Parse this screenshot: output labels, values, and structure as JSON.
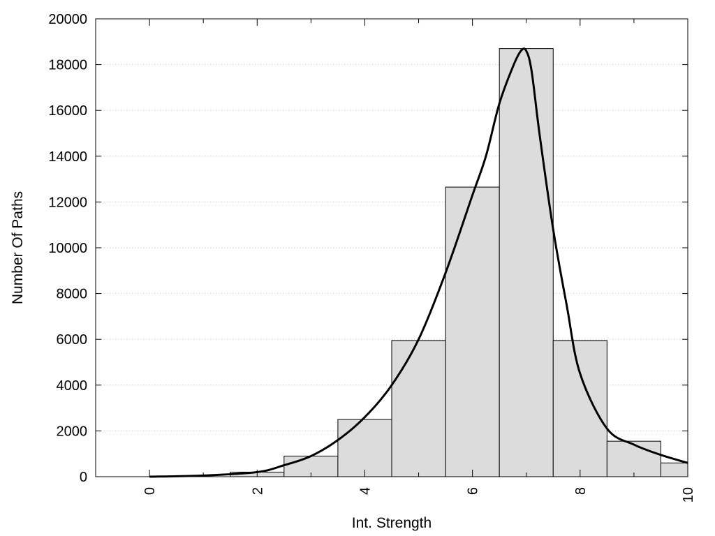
{
  "chart_data": {
    "type": "bar",
    "title": "",
    "xlabel": "Int. Strength",
    "ylabel": "Number Of Paths",
    "xlim": [
      -1,
      10
    ],
    "ylim": [
      0,
      20000
    ],
    "grid": "horizontal dotted",
    "x_ticks": [
      0,
      2,
      4,
      6,
      8,
      10
    ],
    "y_ticks": [
      0,
      2000,
      4000,
      6000,
      8000,
      10000,
      12000,
      14000,
      16000,
      18000,
      20000
    ],
    "bar_color": "#dcdcdc",
    "bars": [
      {
        "x": 0,
        "value": 0
      },
      {
        "x": 1,
        "value": 0
      },
      {
        "x": 2,
        "value": 200
      },
      {
        "x": 3,
        "value": 900
      },
      {
        "x": 4,
        "value": 2500
      },
      {
        "x": 5,
        "value": 5950
      },
      {
        "x": 6,
        "value": 12650
      },
      {
        "x": 7,
        "value": 18700
      },
      {
        "x": 8,
        "value": 5950
      },
      {
        "x": 9,
        "value": 1550
      },
      {
        "x": 10,
        "value": 600
      }
    ],
    "curve": {
      "x": [
        0,
        1,
        2,
        2.5,
        3,
        3.5,
        4,
        4.5,
        5,
        5.5,
        6,
        6.25,
        6.5,
        6.75,
        6.9,
        7,
        7.1,
        7.25,
        7.5,
        7.75,
        8,
        8.5,
        9,
        9.5,
        10
      ],
      "y": [
        0,
        50,
        200,
        500,
        900,
        1600,
        2600,
        4000,
        6000,
        8900,
        12300,
        14000,
        16300,
        17900,
        18600,
        18600,
        17700,
        14900,
        10800,
        7500,
        4500,
        2100,
        1400,
        950,
        600
      ]
    }
  }
}
